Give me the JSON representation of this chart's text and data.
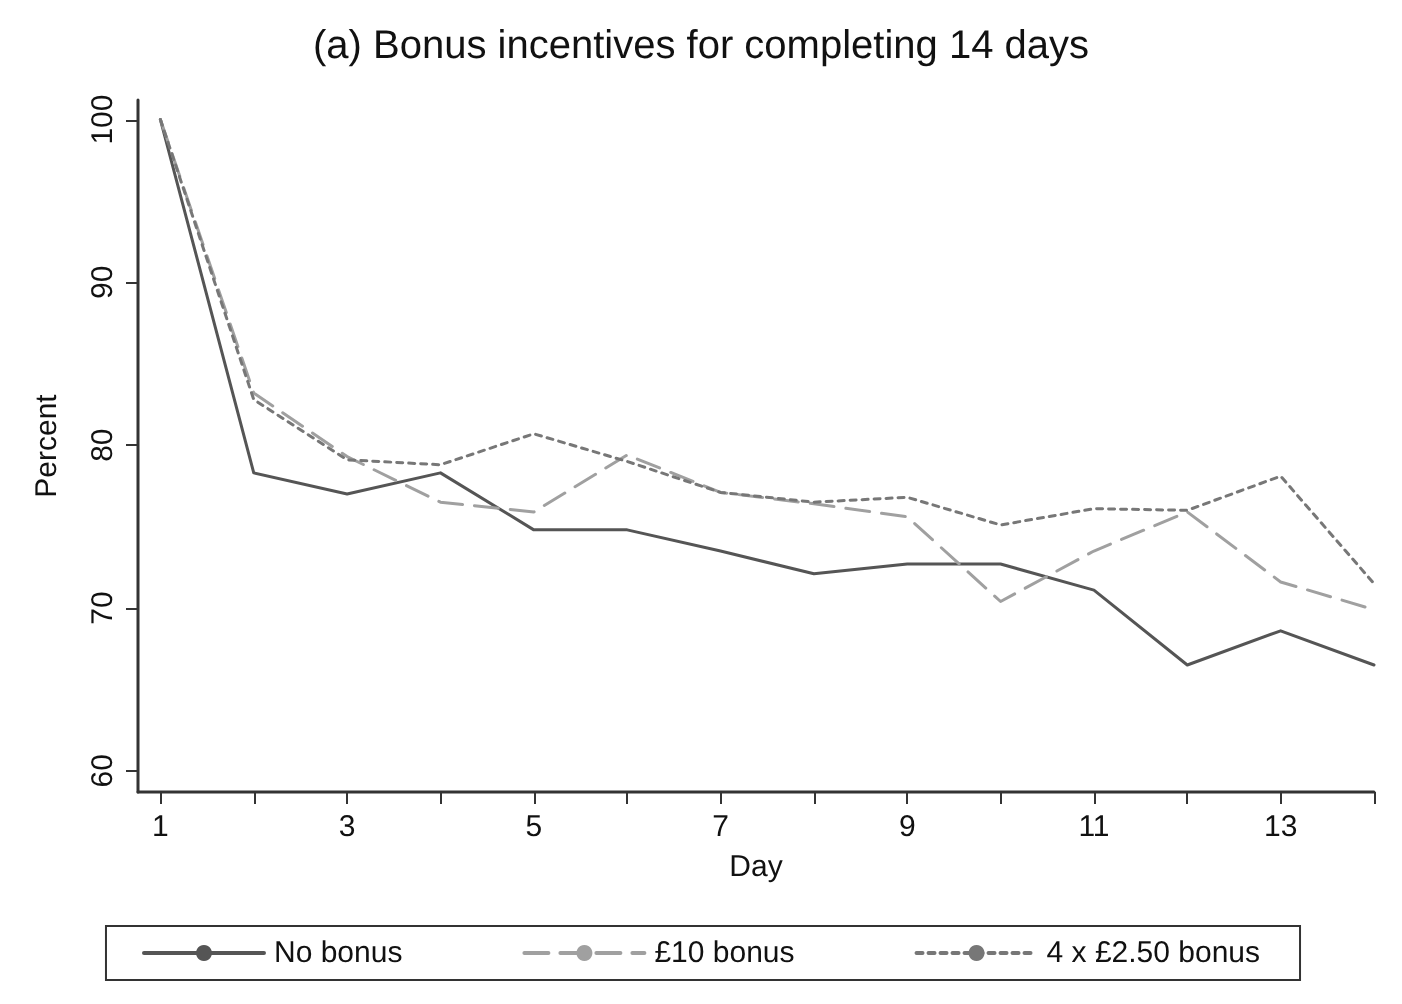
{
  "chart_data": {
    "type": "line",
    "title": "(a) Bonus incentives for completing 14 days",
    "xlabel": "Day",
    "ylabel": "Percent",
    "x": [
      1,
      2,
      3,
      4,
      5,
      6,
      7,
      8,
      9,
      10,
      11,
      12,
      13,
      14
    ],
    "series": [
      {
        "name": "No bonus",
        "color": "#555555",
        "line_style": "solid",
        "values": [
          100,
          78.3,
          77.0,
          78.3,
          74.8,
          74.8,
          73.5,
          72.1,
          72.7,
          72.7,
          71.1,
          66.5,
          68.6,
          66.5
        ]
      },
      {
        "name": "£10 bonus",
        "color": "#a0a0a0",
        "line_style": "dashed",
        "values": [
          100,
          83.2,
          79.3,
          76.5,
          75.9,
          79.4,
          77.1,
          76.4,
          75.6,
          70.4,
          73.5,
          75.9,
          71.6,
          69.9
        ]
      },
      {
        "name": "4 x £2.50 bonus",
        "color": "#777777",
        "line_style": "dotted",
        "values": [
          100,
          82.8,
          79.1,
          78.8,
          80.7,
          79.0,
          77.1,
          76.5,
          76.8,
          75.1,
          76.1,
          76.0,
          78.1,
          71.5
        ]
      }
    ],
    "xlim": [
      0.76,
      14
    ],
    "ylim": [
      58.7,
      101.2
    ],
    "xticks": [
      1,
      {
        "value": 2,
        "label": null
      },
      3,
      {
        "value": 4,
        "label": null
      },
      5,
      {
        "value": 6,
        "label": null
      },
      7,
      {
        "value": 8,
        "label": null
      },
      9,
      {
        "value": 10,
        "label": null
      },
      11,
      {
        "value": 12,
        "label": null
      },
      13,
      {
        "value": 14,
        "label": null
      }
    ],
    "yticks": [
      60,
      70,
      80,
      90,
      100
    ],
    "grid": false,
    "legend": "bottom",
    "marker": "none"
  }
}
